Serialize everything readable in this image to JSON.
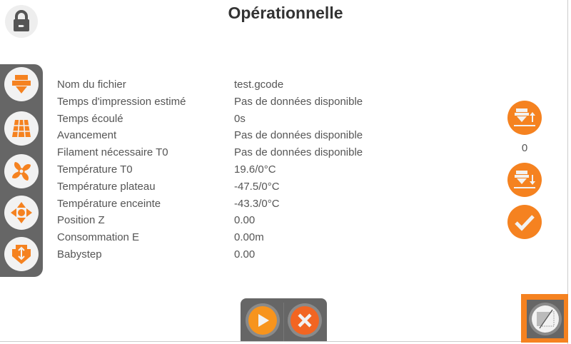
{
  "header": {
    "title": "Opérationnelle"
  },
  "colors": {
    "accent": "#f58220",
    "panel": "#666666",
    "play": "#f7941d",
    "cancel": "#f26522"
  },
  "lock": {
    "icon": "lock-icon"
  },
  "sidebar": {
    "items": [
      {
        "name": "extruder",
        "icon": "extruder-icon"
      },
      {
        "name": "bed",
        "icon": "bed-grid-icon"
      },
      {
        "name": "fan",
        "icon": "fan-icon"
      },
      {
        "name": "move",
        "icon": "move-arrows-icon"
      },
      {
        "name": "extrude-retract",
        "icon": "extrude-retract-icon"
      }
    ]
  },
  "info": {
    "rows": [
      {
        "label": "Nom du fichier",
        "value": "test.gcode"
      },
      {
        "label": "Temps d'impression estimé",
        "value": "Pas de données disponible"
      },
      {
        "label": "Temps écoulé",
        "value": "0s"
      },
      {
        "label": "Avancement",
        "value": "Pas de données disponible"
      },
      {
        "label": "Filament nécessaire T0",
        "value": "Pas de données disponible"
      },
      {
        "label": "Température T0",
        "value": "19.6/0°C"
      },
      {
        "label": "Température plateau",
        "value": "-47.5/0°C"
      },
      {
        "label": "Température enceinte",
        "value": "-43.3/0°C"
      },
      {
        "label": "Position Z",
        "value": "0.00"
      },
      {
        "label": "Consommation E",
        "value": "0.00m"
      },
      {
        "label": "Babystep",
        "value": "0.00"
      }
    ]
  },
  "babystep": {
    "value": "0",
    "up_icon": "nozzle-up-icon",
    "down_icon": "nozzle-down-icon",
    "confirm_icon": "check-icon"
  },
  "controls": {
    "play_icon": "play-icon",
    "cancel_icon": "cancel-icon"
  },
  "corner": {
    "icon": "screen-toggle-icon"
  }
}
